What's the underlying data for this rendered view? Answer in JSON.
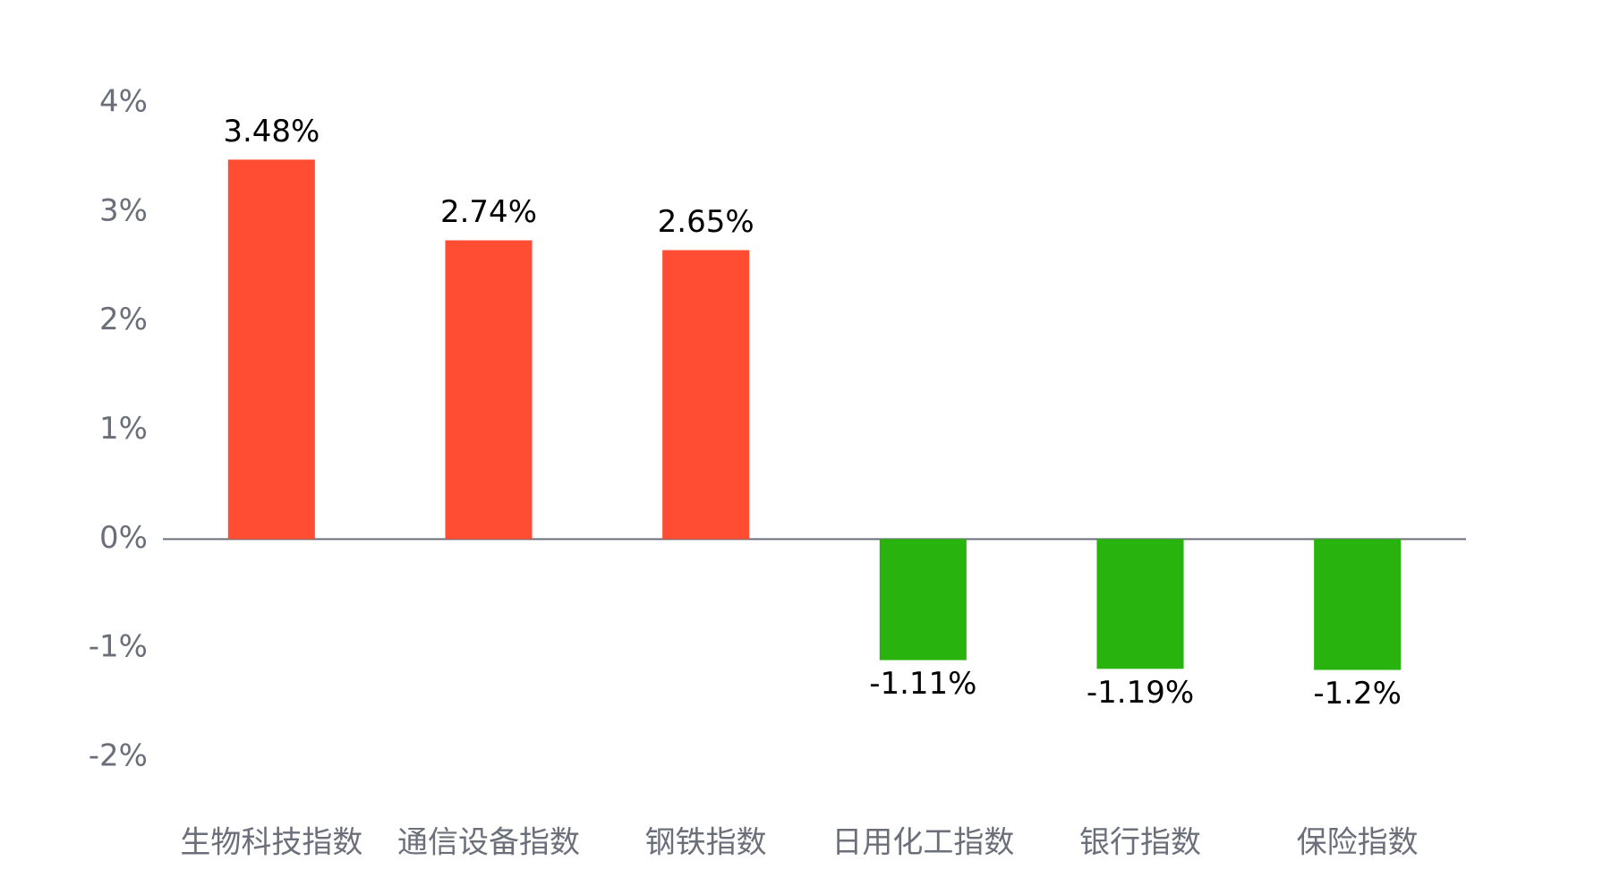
{
  "chart_data": {
    "type": "bar",
    "categories": [
      "生物科技指数",
      "通信设备指数",
      "钢铁指数",
      "日用化工指数",
      "银行指数",
      "保险指数"
    ],
    "values": [
      3.48,
      2.74,
      2.65,
      -1.11,
      -1.19,
      -1.2
    ],
    "value_labels": [
      "3.48%",
      "2.74%",
      "2.65%",
      "-1.11%",
      "-1.19%",
      "-1.2%"
    ],
    "colors": [
      "#ff4d33",
      "#ff4d33",
      "#ff4d33",
      "#29b30f",
      "#29b30f",
      "#29b30f"
    ],
    "ylim": [
      -2,
      4
    ],
    "yticks": [
      {
        "value": -2,
        "label": "-2%"
      },
      {
        "value": -1,
        "label": "-1%"
      },
      {
        "value": 0,
        "label": "0%"
      },
      {
        "value": 1,
        "label": "1%"
      },
      {
        "value": 2,
        "label": "2%"
      },
      {
        "value": 3,
        "label": "3%"
      },
      {
        "value": 4,
        "label": "4%"
      }
    ],
    "grid": false
  }
}
